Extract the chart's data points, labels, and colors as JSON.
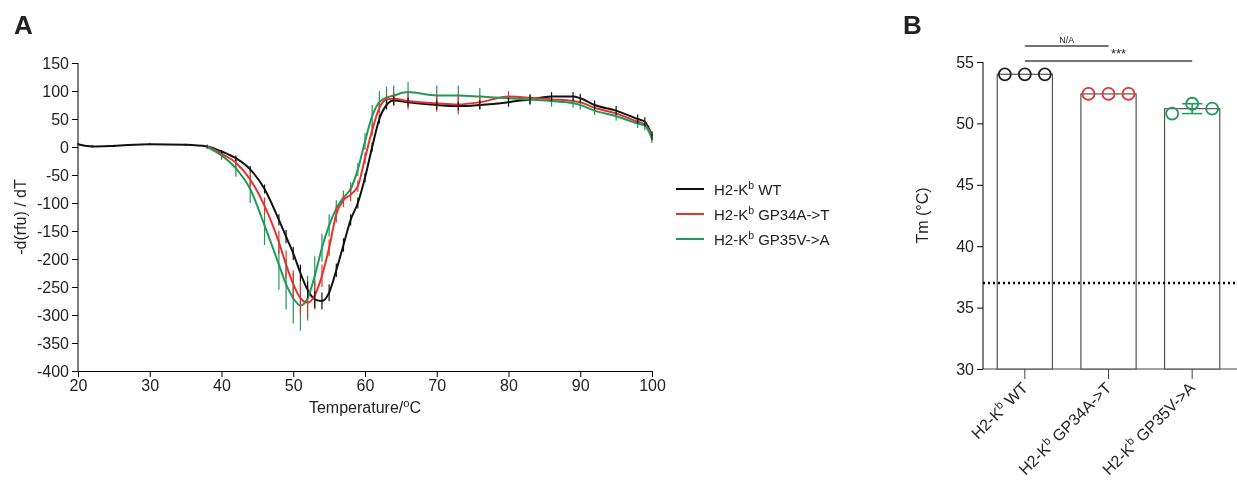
{
  "chart_data": [
    {
      "type": "line",
      "title": "A",
      "xlabel": "Temperature/$^{o}$C",
      "ylabel": "-d(rfu) / dT",
      "xlim": [
        20,
        100
      ],
      "xticks": [
        20,
        30,
        40,
        50,
        60,
        70,
        80,
        90,
        100
      ],
      "ylim": [
        -400,
        150
      ],
      "yticks": [
        -400,
        -350,
        -300,
        -250,
        -200,
        -150,
        -100,
        -50,
        0,
        50,
        100,
        150
      ],
      "legend": "right",
      "marker": "none",
      "line_style": "solid",
      "x": [
        20,
        22,
        25,
        30,
        35,
        38,
        40,
        42,
        44,
        46,
        48,
        49,
        50,
        51,
        52,
        53,
        54,
        55,
        56,
        57,
        58,
        59,
        60,
        61,
        62,
        63,
        64,
        66,
        70,
        73,
        76,
        80,
        83,
        86,
        89,
        90,
        92,
        95,
        98,
        99,
        100
      ],
      "series": [
        {
          "name": "H2-K$^{b}$  WT",
          "color": "#111111",
          "values": [
            5,
            1,
            2,
            5,
            4,
            1,
            -8,
            -20,
            -40,
            -75,
            -130,
            -160,
            -190,
            -225,
            -255,
            -272,
            -275,
            -260,
            -220,
            -175,
            -130,
            -100,
            -55,
            0,
            50,
            75,
            83,
            80,
            75,
            73,
            75,
            80,
            85,
            90,
            90,
            87,
            75,
            65,
            50,
            45,
            20
          ],
          "errors": [
            2,
            2,
            2,
            2,
            2,
            2,
            3,
            5,
            6,
            8,
            10,
            12,
            12,
            15,
            15,
            15,
            15,
            15,
            12,
            12,
            10,
            10,
            8,
            8,
            8,
            8,
            8,
            8,
            8,
            8,
            8,
            8,
            8,
            8,
            8,
            8,
            8,
            8,
            8,
            8,
            8
          ]
        },
        {
          "name": "H2-K$^{b}$ GP34A->T",
          "color": "#e8312f",
          "values": [
            null,
            null,
            null,
            null,
            null,
            1,
            -12,
            -28,
            -58,
            -105,
            -170,
            -210,
            -245,
            -270,
            -278,
            -265,
            -230,
            -180,
            -120,
            -95,
            -85,
            -70,
            -20,
            30,
            70,
            85,
            86,
            82,
            78,
            76,
            80,
            90,
            88,
            85,
            82,
            80,
            70,
            60,
            45,
            40,
            20
          ],
          "errors": [
            null,
            null,
            null,
            null,
            null,
            3,
            5,
            8,
            12,
            15,
            20,
            25,
            25,
            28,
            28,
            25,
            20,
            15,
            15,
            12,
            12,
            10,
            10,
            10,
            10,
            10,
            12,
            15,
            15,
            18,
            12,
            10,
            null,
            null,
            null,
            null,
            null,
            null,
            null,
            null,
            null
          ]
        },
        {
          "name": "H2-K$^{b}$ GP35V->A",
          "color": "#1f9a5a",
          "values": [
            null,
            null,
            null,
            null,
            null,
            0,
            -15,
            -38,
            -75,
            -140,
            -210,
            -245,
            -270,
            -283,
            -270,
            -230,
            -180,
            -140,
            -110,
            -90,
            -75,
            -40,
            10,
            55,
            80,
            88,
            92,
            98,
            92,
            92,
            90,
            87,
            85,
            82,
            78,
            75,
            65,
            55,
            42,
            38,
            15
          ],
          "errors": [
            null,
            null,
            null,
            null,
            null,
            4,
            8,
            15,
            25,
            35,
            45,
            45,
            45,
            45,
            40,
            35,
            25,
            20,
            15,
            12,
            12,
            12,
            15,
            20,
            20,
            20,
            18,
            18,
            18,
            18,
            15,
            null,
            10,
            10,
            8,
            8,
            8,
            8,
            8,
            8,
            8
          ]
        }
      ]
    },
    {
      "type": "bar",
      "title": "B",
      "ylabel": "Tm  (°C)",
      "categories": [
        "H2-K$^{b}$ WT",
        "H2-K$^{b}$ GP34A->T",
        "H2-K$^{b}$ GP35V->A"
      ],
      "ylim": [
        30,
        55
      ],
      "yticks": [
        30,
        35,
        40,
        45,
        50,
        55
      ],
      "marker": "circle",
      "series": [
        {
          "type": "bar",
          "color": "#ffffff",
          "values": [
            54,
            52.4,
            51.2
          ],
          "errors": [
            null,
            null,
            0.4
          ]
        },
        {
          "type": "scatter",
          "x": [
            "H2-K$^{b}$ WT",
            "H2-K$^{b}$ WT",
            "H2-K$^{b}$ WT",
            "H2-K$^{b}$ GP34A->T",
            "H2-K$^{b}$ GP34A->T",
            "H2-K$^{b}$ GP34A->T",
            "H2-K$^{b}$ GP35V->A",
            "H2-K$^{b}$ GP35V->A",
            "H2-K$^{b}$ GP35V->A"
          ],
          "values": [
            54,
            54,
            54,
            52.4,
            52.4,
            52.4,
            50.8,
            51.6,
            51.2
          ],
          "colors": [
            "#222222",
            "#222222",
            "#222222",
            "#e8312f",
            "#e8312f",
            "#e8312f",
            "#1f9a5a",
            "#1f9a5a",
            "#1f9a5a"
          ]
        }
      ],
      "ref_lines": [
        {
          "axis": "y",
          "value": 37,
          "line_style": "dotted",
          "color": "#000000"
        }
      ],
      "annotations": [
        "N/A",
        "***"
      ]
    }
  ]
}
